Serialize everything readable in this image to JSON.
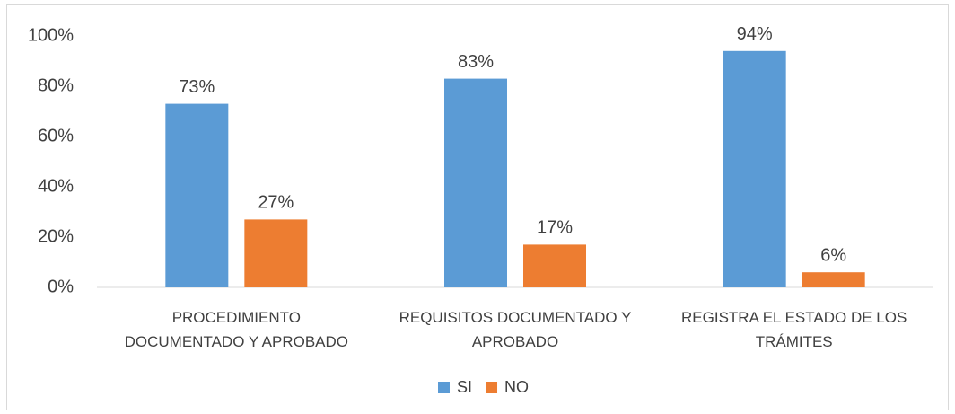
{
  "chart_data": {
    "type": "bar",
    "categories": [
      "PROCEDIMIENTO\nDOCUMENTADO Y APROBADO",
      "REQUISITOS DOCUMENTADO Y\nAPROBADO",
      "REGISTRA EL ESTADO DE LOS\nTRÁMITES"
    ],
    "series": [
      {
        "name": "SI",
        "color": "#5b9bd5",
        "values": [
          73,
          83,
          94
        ],
        "value_labels": [
          "73%",
          "83%",
          "94%"
        ]
      },
      {
        "name": "NO",
        "color": "#ed7d31",
        "values": [
          27,
          17,
          6
        ],
        "value_labels": [
          "27%",
          "17%",
          "6%"
        ]
      }
    ],
    "ylim": [
      0,
      100
    ],
    "yticks": [
      {
        "value": 0,
        "label": "0%"
      },
      {
        "value": 20,
        "label": "20%"
      },
      {
        "value": 40,
        "label": "40%"
      },
      {
        "value": 60,
        "label": "60%"
      },
      {
        "value": 80,
        "label": "80%"
      },
      {
        "value": 100,
        "label": "100%"
      }
    ],
    "grid": false,
    "legend": "bottom"
  }
}
